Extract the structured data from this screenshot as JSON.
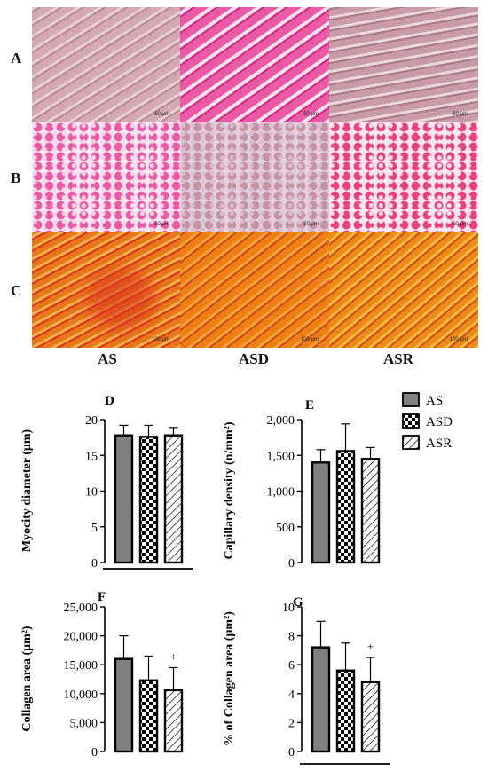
{
  "row_labels": [
    "A",
    "B",
    "C"
  ],
  "column_labels": [
    "AS",
    "ASD",
    "ASR"
  ],
  "scale_bars": [
    "50 μm",
    "50 μm",
    "50 μm",
    "50 μm",
    "50 μm",
    "50 μm",
    "100 μm",
    "100 μm",
    "100 μm"
  ],
  "colors": {
    "he_light": "#d4a9b4",
    "he_pink": "#ea5aa6",
    "he_mauve": "#c592a6",
    "picro_orange": "#e8761a",
    "picro_red": "#d8321c",
    "bar_as": "#808080"
  },
  "legend": [
    {
      "label": "AS",
      "fill": "gray"
    },
    {
      "label": "ASD",
      "fill": "checker"
    },
    {
      "label": "ASR",
      "fill": "hatch"
    }
  ],
  "chart_data": [
    {
      "panel": "D",
      "type": "bar",
      "categories": [
        "AS",
        "ASD",
        "ASR"
      ],
      "values": [
        17.8,
        17.6,
        17.8
      ],
      "errors": [
        1.4,
        1.6,
        1.1
      ],
      "ylabel": "Myocity diameter (μm)",
      "ylim": [
        0,
        20
      ],
      "yticks": [
        "0",
        "5",
        "10",
        "15",
        "20"
      ],
      "annotations": [
        "",
        "",
        ""
      ]
    },
    {
      "panel": "E",
      "type": "bar",
      "categories": [
        "AS",
        "ASD",
        "ASR"
      ],
      "values": [
        1400,
        1560,
        1450
      ],
      "errors": [
        180,
        380,
        160
      ],
      "ylabel": "Capillary density (n/mm²)",
      "ylim": [
        0,
        2000
      ],
      "yticks": [
        "0",
        "500",
        "1,000",
        "1,500",
        "2,000"
      ],
      "annotations": [
        "",
        "",
        ""
      ]
    },
    {
      "panel": "F",
      "type": "bar",
      "categories": [
        "AS",
        "ASD",
        "ASR"
      ],
      "values": [
        16000,
        12300,
        10600
      ],
      "errors": [
        4000,
        4200,
        3900
      ],
      "ylabel": "Collagen area (μm²)",
      "ylim": [
        0,
        25000
      ],
      "yticks": [
        "0",
        "5,000",
        "10,000",
        "15,000",
        "20,000",
        "25,000"
      ],
      "annotations": [
        "",
        "",
        "+"
      ]
    },
    {
      "panel": "G",
      "type": "bar",
      "categories": [
        "AS",
        "ASD",
        "ASR"
      ],
      "values": [
        7.2,
        5.6,
        4.8
      ],
      "errors": [
        1.8,
        1.9,
        1.7
      ],
      "ylabel": "% of Collagen area (μm²)",
      "ylim": [
        0,
        10
      ],
      "yticks": [
        "0",
        "2",
        "4",
        "6",
        "8",
        "10"
      ],
      "annotations": [
        "",
        "",
        "+"
      ]
    }
  ]
}
